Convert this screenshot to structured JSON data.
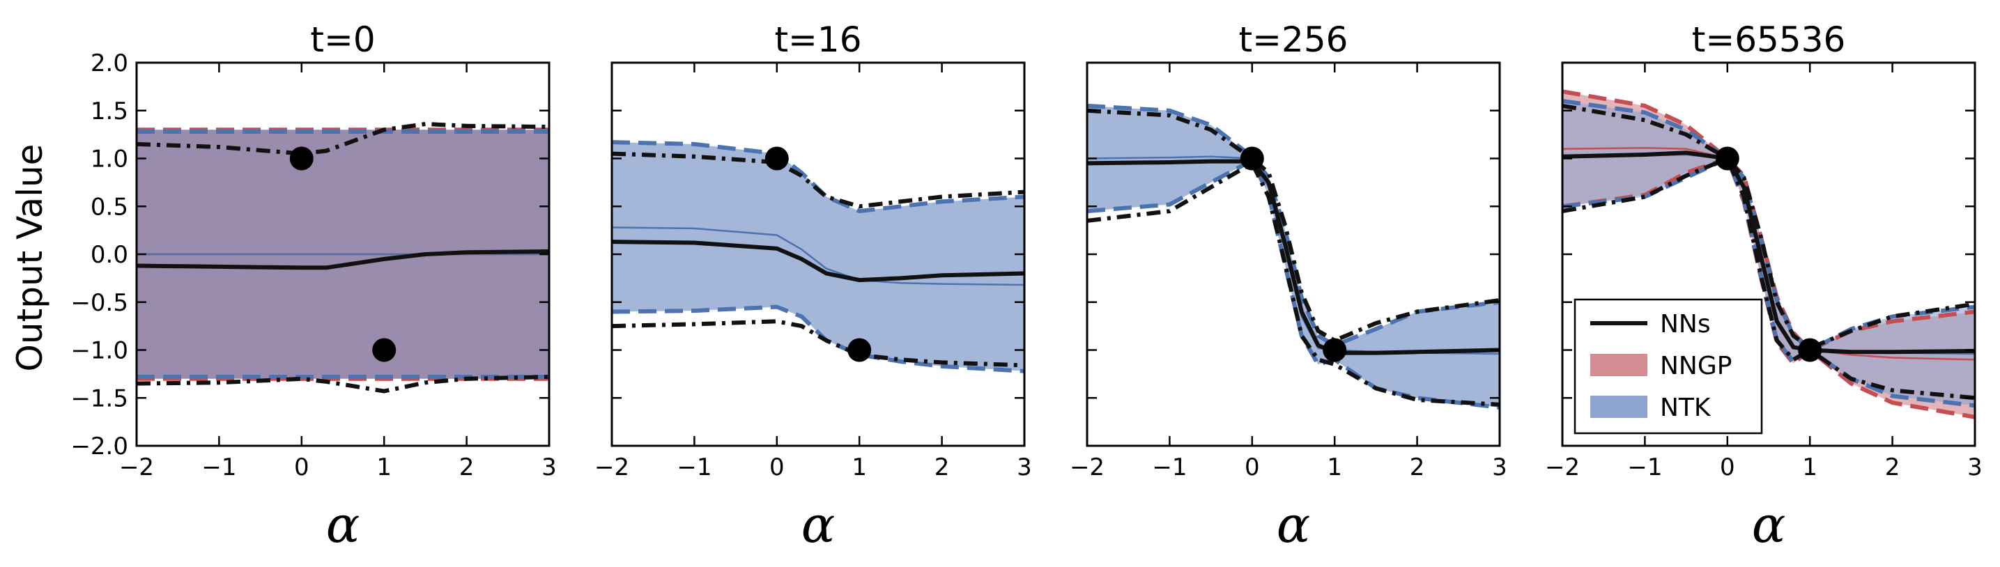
{
  "figure": {
    "ylabel": "Output Value",
    "colors": {
      "nn": "#111111",
      "nngp_fill": "#d48e93",
      "nngp_line": "#c44e52",
      "ntk_fill": "#8ea5d0",
      "ntk_line": "#4c72b0",
      "overlap_fill": "#9a8cad"
    },
    "legend": {
      "panel": 3,
      "placement": "lower-left",
      "entries": [
        {
          "label": "NNs",
          "kind": "line"
        },
        {
          "label": "NNGP",
          "kind": "patch-nngp"
        },
        {
          "label": "NTK",
          "kind": "patch-ntk"
        }
      ]
    }
  },
  "chart_data": [
    {
      "type": "line",
      "title": "t=0",
      "xlabel": "α",
      "ylabel": "Output Value",
      "xlim": [
        -2,
        3
      ],
      "ylim": [
        -2,
        2
      ],
      "xticks": [
        -2,
        -1,
        0,
        1,
        2,
        3
      ],
      "xtick_labels": [
        "−2",
        "−1",
        "0",
        "1",
        "2",
        "3"
      ],
      "yticks": [
        -2,
        -1.5,
        -1,
        -0.5,
        0,
        0.5,
        1,
        1.5,
        2
      ],
      "ytick_labels": [
        "−2.0",
        "−1.5",
        "−1.0",
        "−0.5",
        "0.0",
        "0.5",
        "1.0",
        "1.5",
        "2.0"
      ],
      "show_ytick_labels": true,
      "training_points": [
        [
          0,
          1
        ],
        [
          1,
          -1
        ]
      ],
      "x": [
        -2,
        -1,
        0,
        0.3,
        1,
        1.5,
        2,
        3
      ],
      "nn_mean": [
        -0.12,
        -0.13,
        -0.14,
        -0.14,
        -0.05,
        0.0,
        0.02,
        0.03
      ],
      "nn_upper": [
        1.15,
        1.12,
        1.05,
        1.08,
        1.3,
        1.36,
        1.34,
        1.33
      ],
      "nn_lower": [
        -1.35,
        -1.34,
        -1.3,
        -1.33,
        -1.43,
        -1.34,
        -1.3,
        -1.28
      ],
      "nngp_mean": [
        0.0,
        0.0,
        0.0,
        0.0,
        0.0,
        0.0,
        0.0,
        0.0
      ],
      "nngp_upper": [
        1.3,
        1.3,
        1.3,
        1.3,
        1.3,
        1.3,
        1.3,
        1.3
      ],
      "nngp_lower": [
        -1.3,
        -1.3,
        -1.3,
        -1.3,
        -1.3,
        -1.3,
        -1.3,
        -1.3
      ],
      "ntk_mean": [
        0.0,
        0.0,
        0.0,
        0.0,
        0.0,
        0.0,
        0.0,
        0.0
      ],
      "ntk_upper": [
        1.28,
        1.28,
        1.28,
        1.28,
        1.28,
        1.28,
        1.28,
        1.28
      ],
      "ntk_lower": [
        -1.28,
        -1.28,
        -1.28,
        -1.28,
        -1.28,
        -1.28,
        -1.28,
        -1.28
      ]
    },
    {
      "type": "line",
      "title": "t=16",
      "xlabel": "α",
      "xlim": [
        -2,
        3
      ],
      "ylim": [
        -2,
        2
      ],
      "xticks": [
        -2,
        -1,
        0,
        1,
        2,
        3
      ],
      "xtick_labels": [
        "−2",
        "−1",
        "0",
        "1",
        "2",
        "3"
      ],
      "yticks": [
        -2,
        -1.5,
        -1,
        -0.5,
        0,
        0.5,
        1,
        1.5,
        2
      ],
      "show_ytick_labels": false,
      "training_points": [
        [
          0,
          1
        ],
        [
          1,
          -1
        ]
      ],
      "x": [
        -2,
        -1,
        0,
        0.3,
        0.6,
        1,
        1.5,
        2,
        3
      ],
      "nn_mean": [
        0.13,
        0.12,
        0.06,
        -0.05,
        -0.2,
        -0.27,
        -0.25,
        -0.22,
        -0.2
      ],
      "nn_upper": [
        1.05,
        1.02,
        0.96,
        0.82,
        0.6,
        0.5,
        0.55,
        0.6,
        0.65
      ],
      "nn_lower": [
        -0.75,
        -0.73,
        -0.7,
        -0.75,
        -0.9,
        -1.05,
        -1.1,
        -1.13,
        -1.16
      ],
      "ntk_mean": [
        0.28,
        0.27,
        0.2,
        0.05,
        -0.15,
        -0.27,
        -0.3,
        -0.31,
        -0.32
      ],
      "ntk_upper": [
        1.17,
        1.15,
        1.05,
        0.85,
        0.6,
        0.45,
        0.5,
        0.55,
        0.6
      ],
      "ntk_lower": [
        -0.6,
        -0.59,
        -0.55,
        -0.65,
        -0.9,
        -1.05,
        -1.12,
        -1.17,
        -1.22
      ]
    },
    {
      "type": "line",
      "title": "t=256",
      "xlabel": "α",
      "xlim": [
        -2,
        3
      ],
      "ylim": [
        -2,
        2
      ],
      "xticks": [
        -2,
        -1,
        0,
        1,
        2,
        3
      ],
      "xtick_labels": [
        "−2",
        "−1",
        "0",
        "1",
        "2",
        "3"
      ],
      "yticks": [
        -2,
        -1.5,
        -1,
        -0.5,
        0,
        0.5,
        1,
        1.5,
        2
      ],
      "show_ytick_labels": false,
      "training_points": [
        [
          0,
          1
        ],
        [
          1,
          -1
        ]
      ],
      "x": [
        -2,
        -1,
        -0.5,
        0,
        0.2,
        0.4,
        0.6,
        0.8,
        1,
        1.5,
        2,
        3
      ],
      "nn_mean": [
        0.95,
        0.96,
        0.97,
        0.97,
        0.75,
        0.1,
        -0.6,
        -0.95,
        -1.03,
        -1.03,
        -1.02,
        -1.0
      ],
      "nn_upper": [
        1.5,
        1.45,
        1.3,
        1.0,
        0.85,
        0.3,
        -0.4,
        -0.8,
        -0.9,
        -0.72,
        -0.6,
        -0.48
      ],
      "nn_lower": [
        0.35,
        0.45,
        0.7,
        0.95,
        0.6,
        -0.1,
        -0.85,
        -1.1,
        -1.15,
        -1.4,
        -1.52,
        -1.57
      ],
      "ntk_mean": [
        1.0,
        1.01,
        1.02,
        1.0,
        0.7,
        0.05,
        -0.65,
        -0.98,
        -1.0,
        -1.02,
        -1.03,
        -1.04
      ],
      "ntk_upper": [
        1.55,
        1.5,
        1.35,
        1.02,
        0.8,
        0.25,
        -0.45,
        -0.85,
        -0.95,
        -0.78,
        -0.6,
        -0.5
      ],
      "ntk_lower": [
        0.45,
        0.52,
        0.75,
        0.98,
        0.62,
        -0.12,
        -0.85,
        -1.15,
        -1.1,
        -1.4,
        -1.5,
        -1.6
      ]
    },
    {
      "type": "line",
      "title": "t=65536",
      "xlabel": "α",
      "xlim": [
        -2,
        3
      ],
      "ylim": [
        -2,
        2
      ],
      "xticks": [
        -2,
        -1,
        0,
        1,
        2,
        3
      ],
      "xtick_labels": [
        "−2",
        "−1",
        "0",
        "1",
        "2",
        "3"
      ],
      "yticks": [
        -2,
        -1.5,
        -1,
        -0.5,
        0,
        0.5,
        1,
        1.5,
        2
      ],
      "show_ytick_labels": false,
      "training_points": [
        [
          0,
          1
        ],
        [
          1,
          -1
        ]
      ],
      "x": [
        -2,
        -1,
        -0.5,
        0,
        0.2,
        0.4,
        0.6,
        0.8,
        1,
        1.5,
        2,
        3
      ],
      "nn_mean": [
        1.02,
        1.04,
        1.06,
        1.0,
        0.7,
        0.0,
        -0.7,
        -0.97,
        -1.0,
        -1.02,
        -1.02,
        -1.01
      ],
      "nn_upper": [
        1.55,
        1.4,
        1.25,
        1.0,
        0.8,
        0.2,
        -0.5,
        -0.85,
        -0.98,
        -0.8,
        -0.65,
        -0.52
      ],
      "nn_lower": [
        0.45,
        0.6,
        0.82,
        1.0,
        0.6,
        -0.2,
        -0.9,
        -1.1,
        -1.0,
        -1.3,
        -1.42,
        -1.5
      ],
      "nngp_mean": [
        1.1,
        1.11,
        1.1,
        1.0,
        0.68,
        0.0,
        -0.68,
        -0.97,
        -1.0,
        -1.05,
        -1.08,
        -1.1
      ],
      "nngp_upper": [
        1.7,
        1.55,
        1.35,
        1.0,
        0.82,
        0.2,
        -0.45,
        -0.82,
        -1.0,
        -0.8,
        -0.7,
        -0.6
      ],
      "nngp_lower": [
        0.5,
        0.62,
        0.85,
        1.0,
        0.55,
        -0.22,
        -0.92,
        -1.14,
        -1.0,
        -1.35,
        -1.55,
        -1.7
      ],
      "ntk_mean": [
        1.02,
        1.03,
        1.04,
        1.0,
        0.69,
        0.0,
        -0.69,
        -0.97,
        -1.0,
        -1.02,
        -1.03,
        -1.04
      ],
      "ntk_upper": [
        1.6,
        1.48,
        1.3,
        1.0,
        0.8,
        0.18,
        -0.48,
        -0.84,
        -1.0,
        -0.78,
        -0.65,
        -0.55
      ],
      "ntk_lower": [
        0.5,
        0.6,
        0.8,
        1.0,
        0.57,
        -0.2,
        -0.9,
        -1.12,
        -1.0,
        -1.3,
        -1.48,
        -1.58
      ]
    }
  ]
}
